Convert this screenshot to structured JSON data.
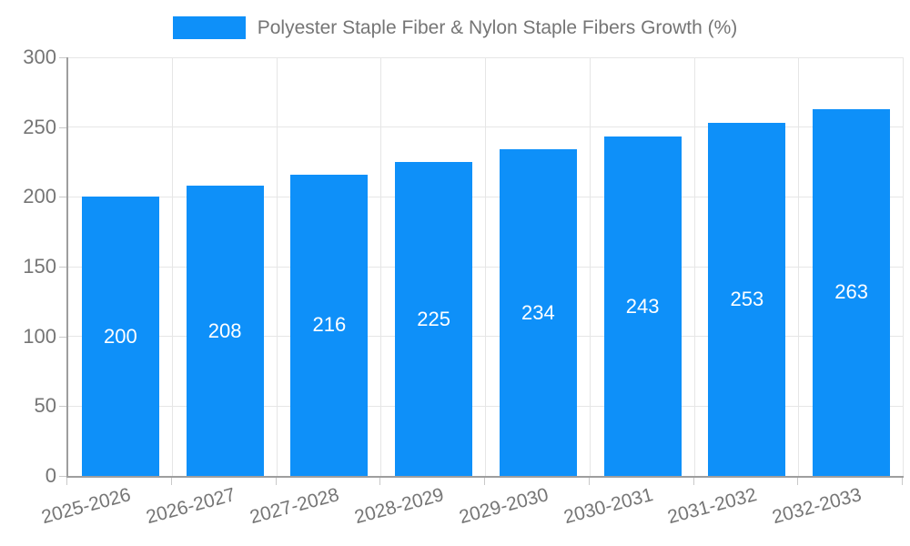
{
  "legend": {
    "label": "Polyester Staple Fiber & Nylon Staple Fibers Growth (%)"
  },
  "colors": {
    "bar": "#0E90F9",
    "axis": "#9E9E9E",
    "grid": "#E6E6E6",
    "tick": "#C9C9C9",
    "label_text": "#757575",
    "bar_value_text": "#FFFFFF",
    "background": "#FFFFFF"
  },
  "chart_data": {
    "type": "bar",
    "title": "Polyester Staple Fiber & Nylon Staple Fibers Growth (%)",
    "categories": [
      "2025-2026",
      "2026-2027",
      "2027-2028",
      "2028-2029",
      "2029-2030",
      "2030-2031",
      "2031-2032",
      "2032-2033"
    ],
    "series": [
      {
        "name": "Polyester Staple Fiber & Nylon Staple Fibers Growth (%)",
        "values": [
          200,
          208,
          216,
          225,
          234,
          243,
          253,
          263
        ]
      }
    ],
    "bar_labels": [
      200,
      208,
      216,
      225,
      234,
      243,
      253,
      263
    ],
    "xlabel": "",
    "ylabel": "",
    "ylim": [
      0,
      300
    ],
    "yticks": [
      0,
      50,
      100,
      150,
      200,
      250,
      300
    ],
    "grid": "horizontal-and-vertical",
    "legend_position": "top-center",
    "x_label_rotation_deg": -15
  }
}
